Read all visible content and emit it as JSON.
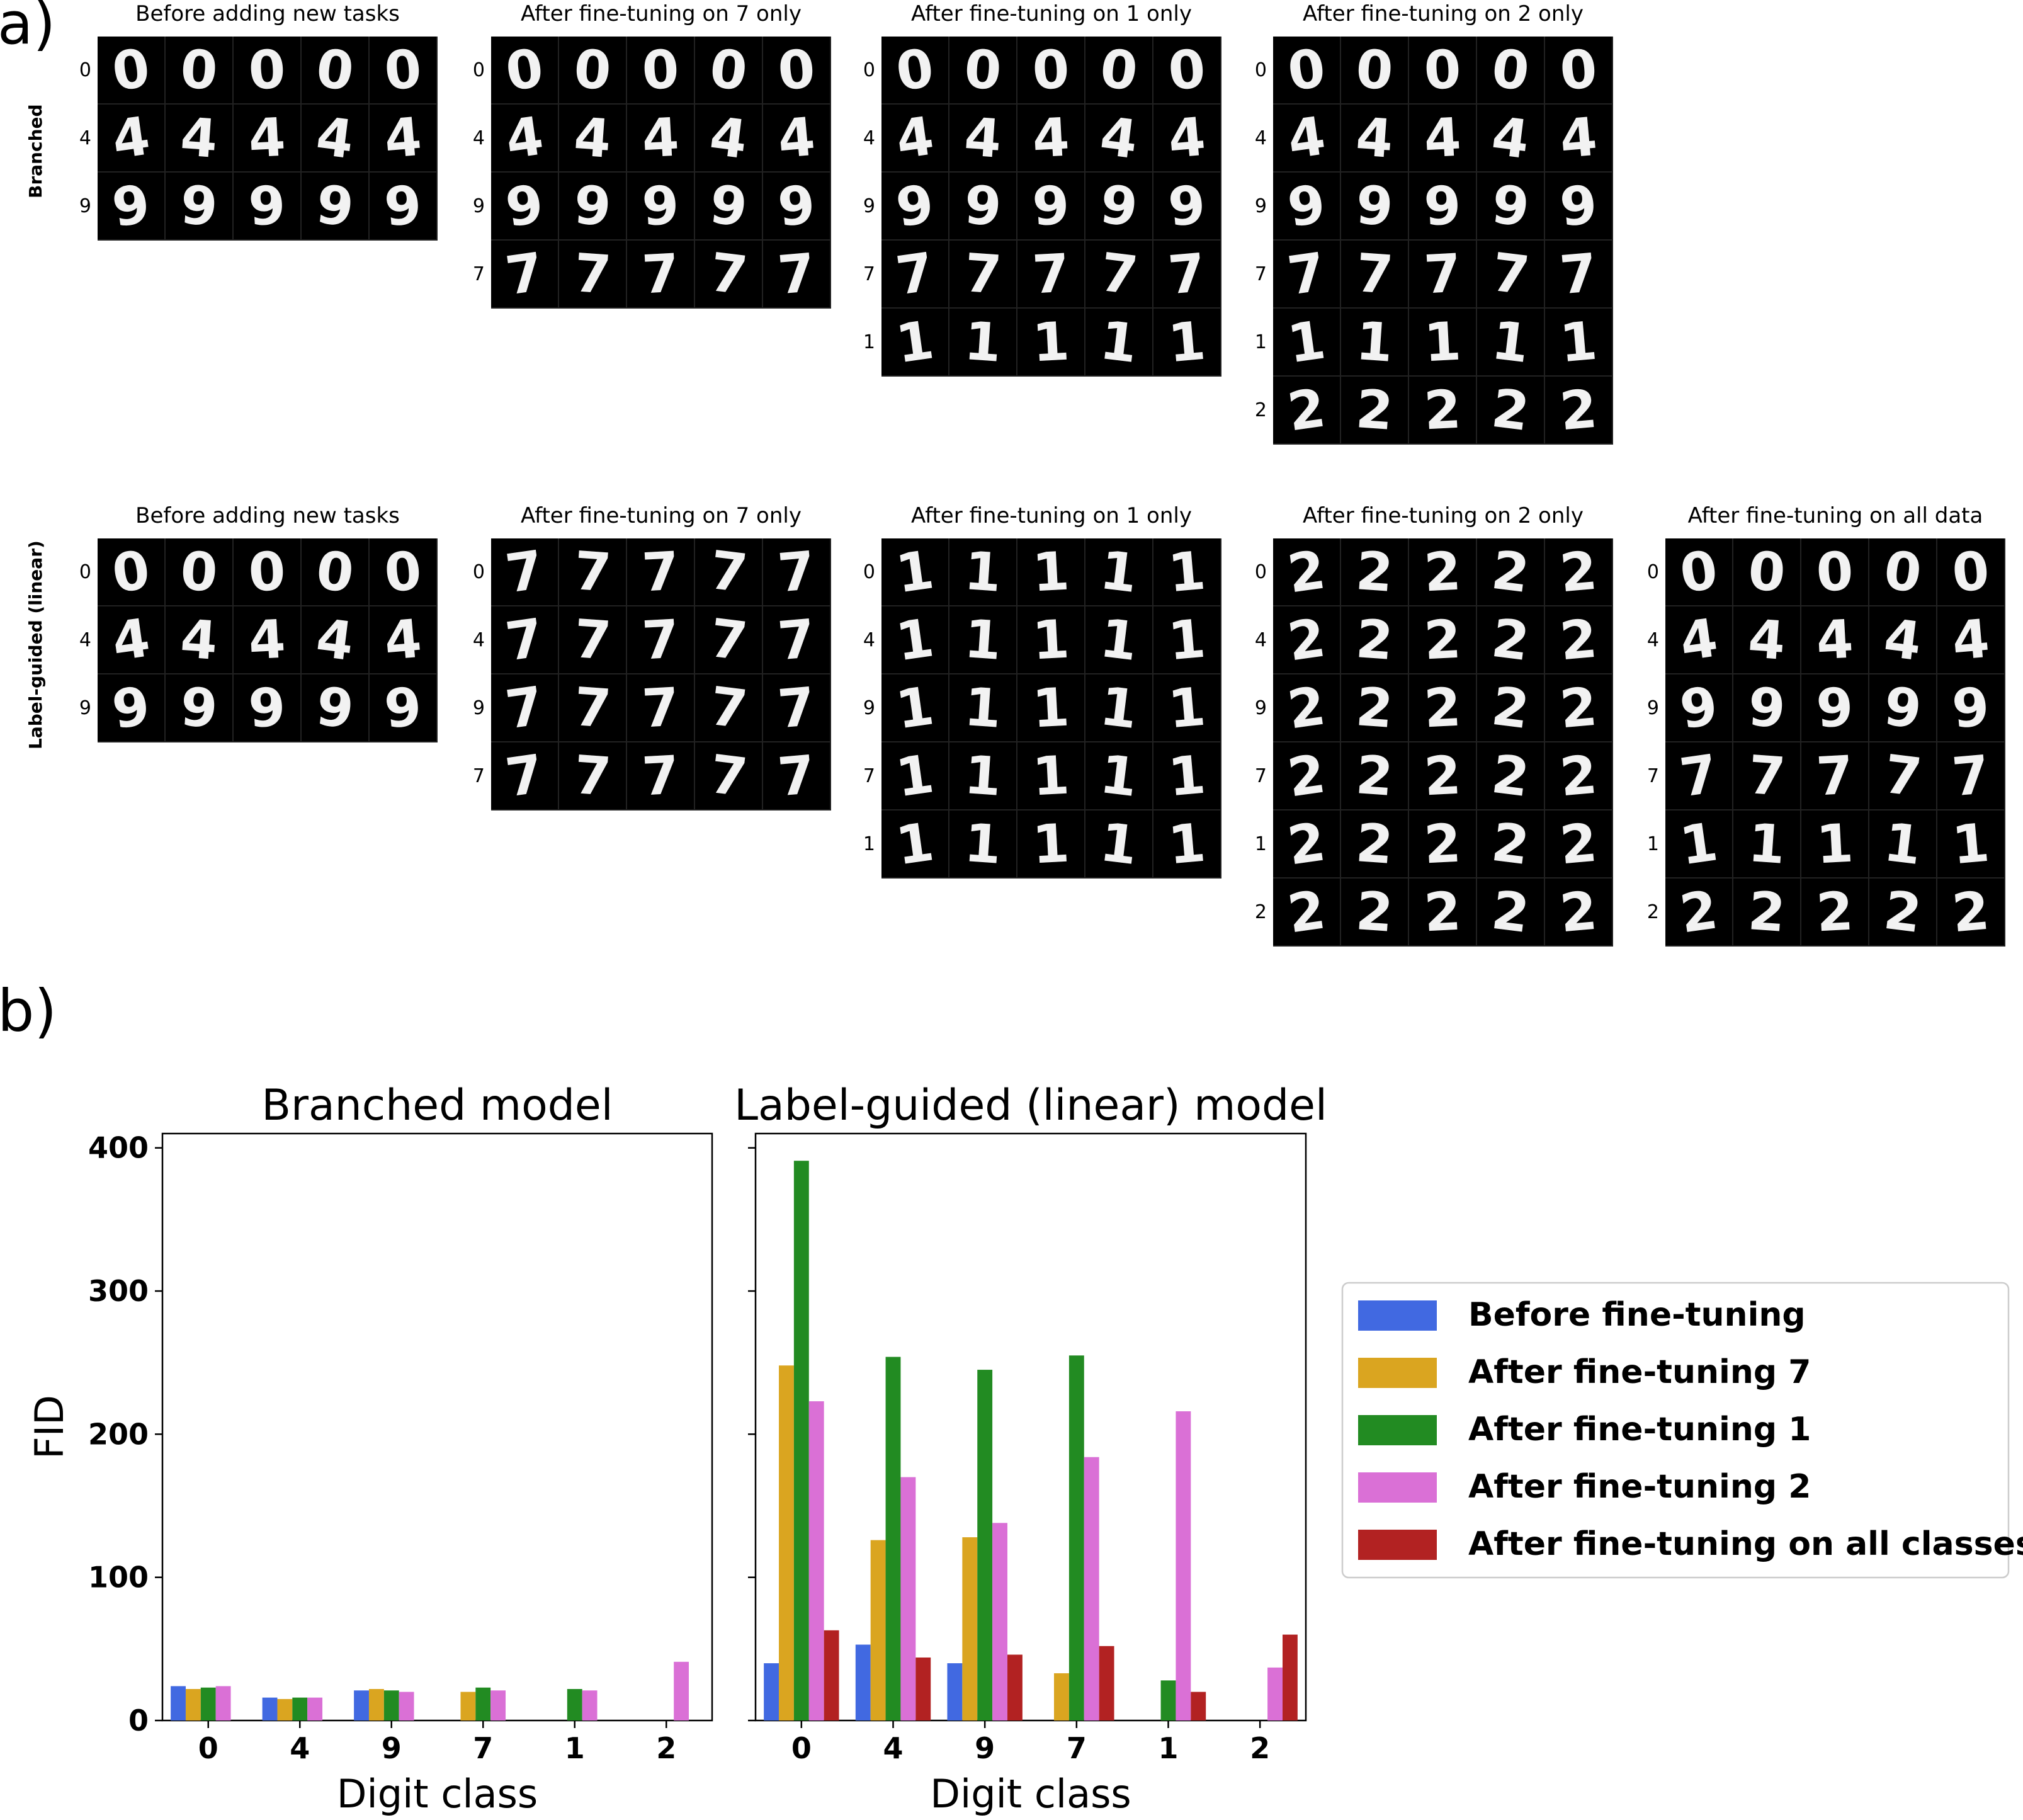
{
  "panel_a_label": "a)",
  "panel_b_label": "b)",
  "row_groups": [
    {
      "label": "Branched",
      "grids": [
        {
          "title": "Before adding new tasks",
          "digits": [
            "0",
            "4",
            "9"
          ]
        },
        {
          "title": "After fine-tuning on 7 only",
          "digits": [
            "0",
            "4",
            "9",
            "7"
          ]
        },
        {
          "title": "After fine-tuning on 1 only",
          "digits": [
            "0",
            "4",
            "9",
            "7",
            "1"
          ]
        },
        {
          "title": "After fine-tuning on 2 only",
          "digits": [
            "0",
            "4",
            "9",
            "7",
            "1",
            "2"
          ]
        }
      ]
    },
    {
      "label": "Label-guided (linear)",
      "grids": [
        {
          "title": "Before adding new tasks",
          "digits": [
            "0",
            "4",
            "9"
          ],
          "shown": [
            "0",
            "4",
            "9"
          ]
        },
        {
          "title": "After fine-tuning on 7 only",
          "digits": [
            "0",
            "4",
            "9",
            "7"
          ],
          "shown": [
            "7",
            "7",
            "7",
            "7"
          ]
        },
        {
          "title": "After fine-tuning on 1 only",
          "digits": [
            "0",
            "4",
            "9",
            "7",
            "1"
          ],
          "shown": [
            "1",
            "1",
            "1",
            "1",
            "1"
          ]
        },
        {
          "title": "After fine-tuning on 2 only",
          "digits": [
            "0",
            "4",
            "9",
            "7",
            "1",
            "2"
          ],
          "shown": [
            "2",
            "2",
            "2",
            "2",
            "2",
            "2"
          ]
        },
        {
          "title": "After fine-tuning on all data",
          "digits": [
            "0",
            "4",
            "9",
            "7",
            "1",
            "2"
          ]
        }
      ]
    }
  ],
  "chart_data": {
    "type": "bar",
    "categories": [
      "0",
      "4",
      "9",
      "7",
      "1",
      "2"
    ],
    "xlabel": "Digit class",
    "ylabel": "FID",
    "ylim": [
      0,
      410
    ],
    "yticks": [
      0,
      100,
      200,
      300,
      400
    ],
    "legend_position": "right",
    "series_colors": [
      "#4169e1",
      "#daa520",
      "#228b22",
      "#da70d6",
      "#b22222"
    ],
    "series_names": [
      "Before fine-tuning",
      "After fine-tuning 7",
      "After fine-tuning 1",
      "After fine-tuning 2",
      "After fine-tuning on all classes"
    ],
    "subplots": [
      {
        "title": "Branched model",
        "series": [
          {
            "values": [
              24,
              16,
              21,
              null,
              null,
              null
            ]
          },
          {
            "values": [
              22,
              15,
              22,
              20,
              null,
              null
            ]
          },
          {
            "values": [
              23,
              16,
              21,
              23,
              22,
              null
            ]
          },
          {
            "values": [
              24,
              16,
              20,
              21,
              21,
              41
            ]
          },
          {
            "values": [
              null,
              null,
              null,
              null,
              null,
              null
            ]
          }
        ]
      },
      {
        "title": "Label-guided (linear) model",
        "series": [
          {
            "values": [
              40,
              53,
              40,
              null,
              null,
              null
            ]
          },
          {
            "values": [
              248,
              126,
              128,
              33,
              null,
              null
            ]
          },
          {
            "values": [
              391,
              254,
              245,
              255,
              28,
              null
            ]
          },
          {
            "values": [
              223,
              170,
              138,
              184,
              216,
              37
            ]
          },
          {
            "values": [
              63,
              44,
              46,
              52,
              20,
              60
            ]
          }
        ]
      }
    ]
  }
}
